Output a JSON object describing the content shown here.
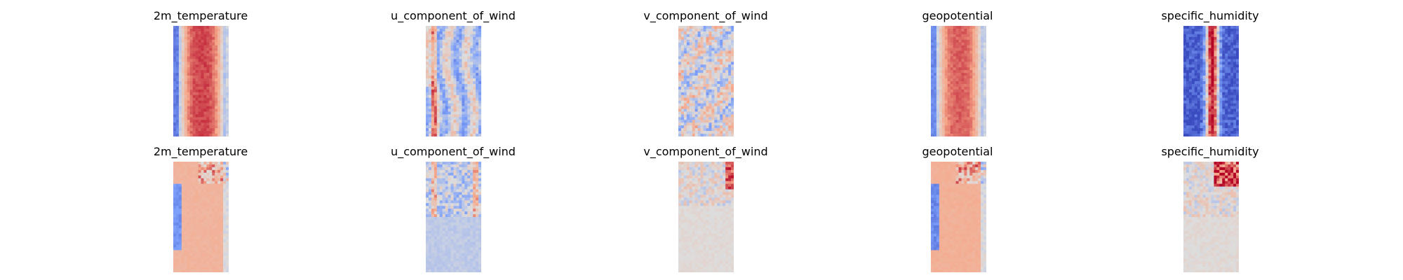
{
  "chart_data": {
    "type": "heatmap",
    "colormap": "coolwarm",
    "axes_visible": false,
    "rows": [
      {
        "panels": [
          {
            "title": "2m_temperature",
            "pattern": "warm_band_center",
            "intensity": 1.0
          },
          {
            "title": "u_component_of_wind",
            "pattern": "noisy_vertical_streaks",
            "intensity": 0.85
          },
          {
            "title": "v_component_of_wind",
            "pattern": "noisy_mixed",
            "intensity": 0.8
          },
          {
            "title": "geopotential",
            "pattern": "warm_band_center",
            "intensity": 0.9
          },
          {
            "title": "specific_humidity",
            "pattern": "narrow_hot_core_cold_edges",
            "intensity": 1.0
          }
        ]
      },
      {
        "panels": [
          {
            "title": "2m_temperature",
            "pattern": "faint_warm_band",
            "intensity": 0.55
          },
          {
            "title": "u_component_of_wind",
            "pattern": "faint_noise_top_streaks",
            "intensity": 0.35
          },
          {
            "title": "v_component_of_wind",
            "pattern": "faint_noise_top_right",
            "intensity": 0.3
          },
          {
            "title": "geopotential",
            "pattern": "faint_warm_band",
            "intensity": 0.7
          },
          {
            "title": "specific_humidity",
            "pattern": "faint_noise_top_right_hot",
            "intensity": 0.4
          }
        ]
      }
    ]
  }
}
